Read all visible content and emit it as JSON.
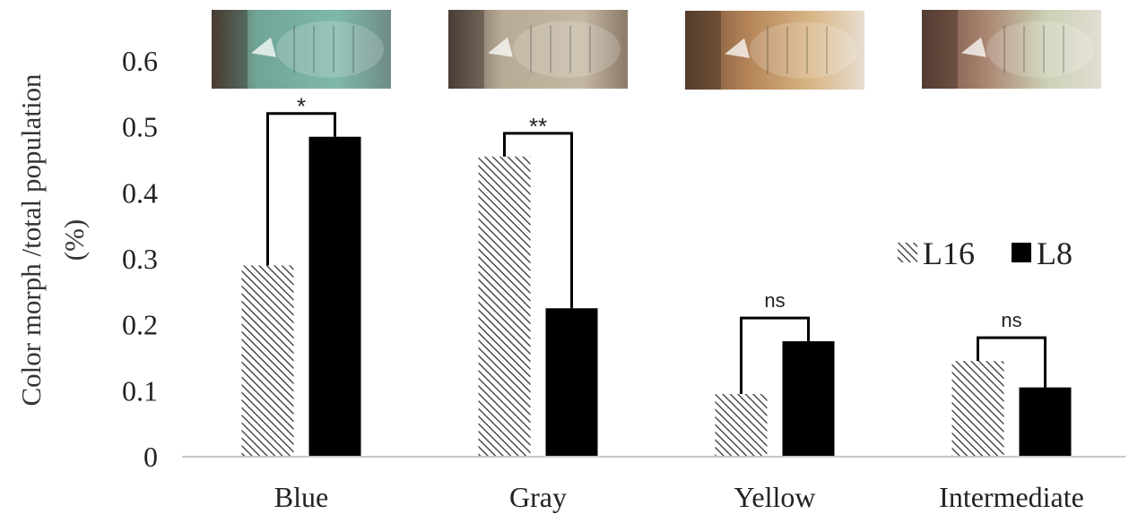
{
  "chart_data": {
    "type": "bar",
    "categories": [
      "Blue",
      "Gray",
      "Yellow",
      "Intermediate"
    ],
    "series": [
      {
        "name": "L16",
        "values": [
          0.29,
          0.455,
          0.095,
          0.145
        ],
        "fill": "hatch"
      },
      {
        "name": "L8",
        "values": [
          0.485,
          0.225,
          0.175,
          0.105
        ],
        "fill": "solid"
      }
    ],
    "ylabel_lines": [
      "Color morph /total population",
      "(%)"
    ],
    "ylim": [
      0,
      0.6
    ],
    "yticks": [
      "0",
      "0.1",
      "0.2",
      "0.3",
      "0.4",
      "0.5",
      "0.6"
    ],
    "significance": [
      "*",
      "**",
      "ns",
      "ns"
    ],
    "legend_position": "right",
    "grid": false,
    "category_images": [
      "blue-morph-photo",
      "gray-morph-photo",
      "yellow-morph-photo",
      "intermediate-morph-photo"
    ],
    "colors": {
      "bar": "#000000",
      "axis": "#c8c8c8",
      "hatch": "#333333"
    }
  }
}
